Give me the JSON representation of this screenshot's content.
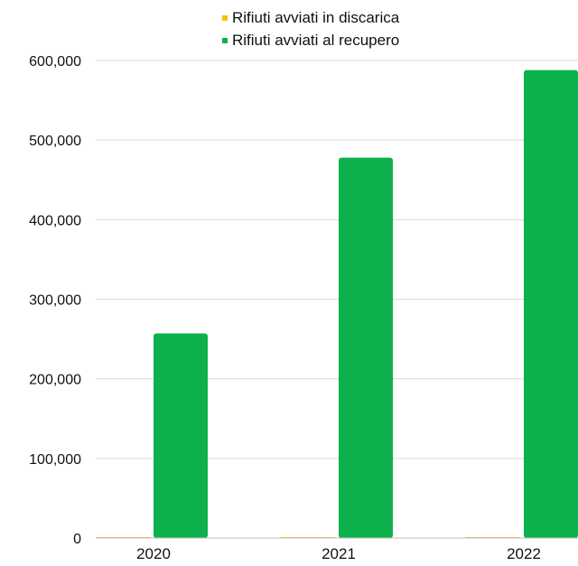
{
  "chart_data": {
    "type": "bar",
    "title": "",
    "xlabel": "",
    "ylabel": "",
    "categories": [
      "2020",
      "2021",
      "2022"
    ],
    "series": [
      {
        "name": "Rifiuti avviati in discarica",
        "color": "#f4c20d",
        "values": [
          400,
          300,
          500
        ]
      },
      {
        "name": "Rifiuti avviati al recupero",
        "color": "#0db14b",
        "values": [
          257000,
          478000,
          588000
        ]
      }
    ],
    "ylim": [
      0,
      600000
    ],
    "yticks": [
      0,
      100000,
      200000,
      300000,
      400000,
      500000,
      600000
    ],
    "ytick_labels": [
      "0",
      "100,000",
      "200,000",
      "300,000",
      "400,000",
      "500,000",
      "600,000"
    ],
    "grid": true,
    "legend_position": "top"
  }
}
